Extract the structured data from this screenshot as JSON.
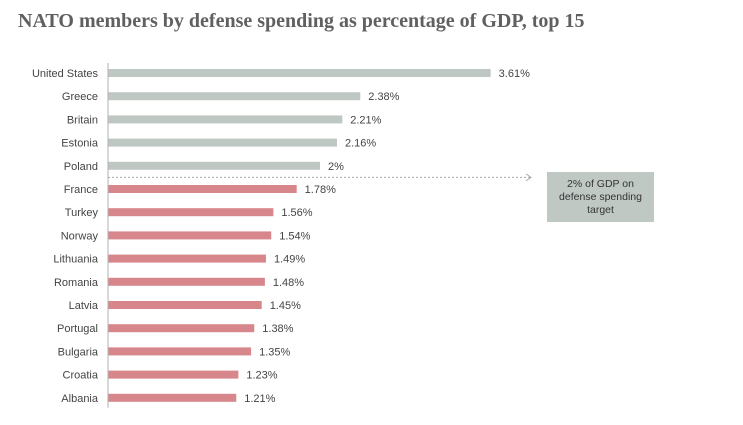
{
  "chart_data": {
    "type": "bar",
    "orientation": "horizontal",
    "title": "NATO members by defense spending as percentage of GDP, top 15",
    "xlabel": "",
    "ylabel": "",
    "xlim": [
      0,
      4.0
    ],
    "grid": false,
    "categories": [
      "United States",
      "Greece",
      "Britain",
      "Estonia",
      "Poland",
      "France",
      "Turkey",
      "Norway",
      "Lithuania",
      "Romania",
      "Latvia",
      "Portugal",
      "Bulgaria",
      "Croatia",
      "Albania"
    ],
    "values": [
      3.61,
      2.38,
      2.21,
      2.16,
      2.0,
      1.78,
      1.56,
      1.54,
      1.49,
      1.48,
      1.45,
      1.38,
      1.35,
      1.23,
      1.21
    ],
    "value_labels": [
      "3.61%",
      "2.38%",
      "2.21%",
      "2.16%",
      "2%",
      "1.78%",
      "1.56%",
      "1.54%",
      "1.49%",
      "1.48%",
      "1.45%",
      "1.38%",
      "1.35%",
      "1.23%",
      "1.21%"
    ],
    "target": {
      "value": 2.0,
      "annotation": "2% of GDP on defense spending target"
    },
    "colors": {
      "at_or_above_target": "#bfc7c3",
      "below_target": "#d7868b",
      "annotation_box": "#c0c8c4",
      "axis": "#b0b0b0"
    }
  }
}
